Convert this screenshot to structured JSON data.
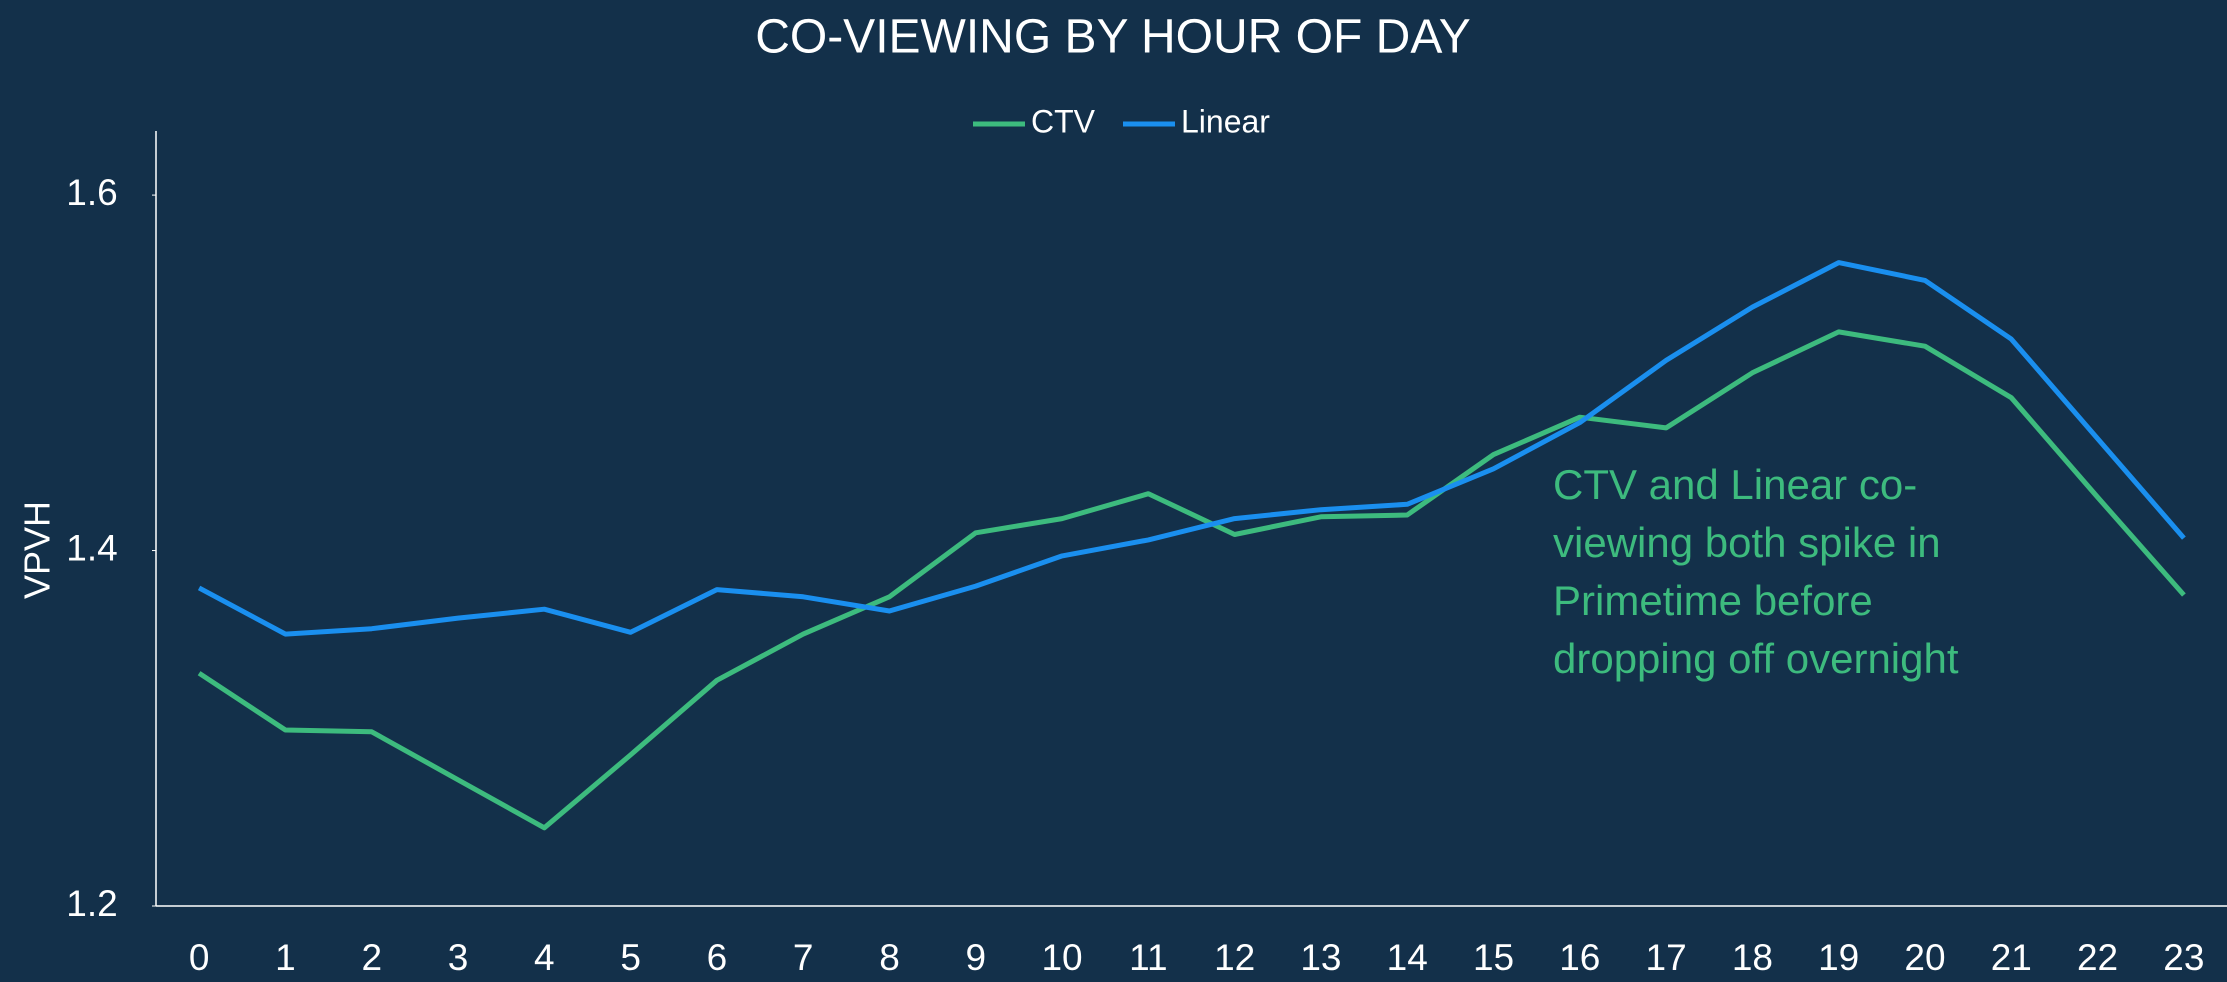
{
  "chart_data": {
    "type": "line",
    "title": "CO-VIEWING BY HOUR OF DAY",
    "y_label": "VPVH",
    "categories": [
      "0",
      "1",
      "2",
      "3",
      "4",
      "5",
      "6",
      "7",
      "8",
      "9",
      "10",
      "11",
      "12",
      "13",
      "14",
      "15",
      "16",
      "17",
      "18",
      "19",
      "20",
      "21",
      "22",
      "23"
    ],
    "series": [
      {
        "name": "CTV",
        "color": "#3dbb7e",
        "values": [
          1.331,
          1.299,
          1.298,
          1.271,
          1.244,
          1.285,
          1.327,
          1.353,
          1.374,
          1.41,
          1.418,
          1.432,
          1.409,
          1.419,
          1.42,
          1.454,
          1.475,
          1.469,
          1.5,
          1.523,
          1.515,
          1.486,
          1.43,
          1.375
        ]
      },
      {
        "name": "Linear",
        "color": "#1a8fef",
        "values": [
          1.379,
          1.353,
          1.356,
          1.362,
          1.367,
          1.354,
          1.378,
          1.374,
          1.366,
          1.38,
          1.397,
          1.406,
          1.418,
          1.423,
          1.426,
          1.446,
          1.472,
          1.507,
          1.537,
          1.562,
          1.552,
          1.519,
          1.463,
          1.407
        ]
      }
    ],
    "ylim": [
      1.2,
      1.64
    ],
    "yticks": [
      1.2,
      1.4,
      1.6
    ],
    "legend": "top",
    "annotation": {
      "color": "#3dbb7e",
      "lines": [
        "CTV and Linear co-",
        "viewing both spike in",
        "Primetime before",
        "dropping off overnight"
      ]
    }
  }
}
